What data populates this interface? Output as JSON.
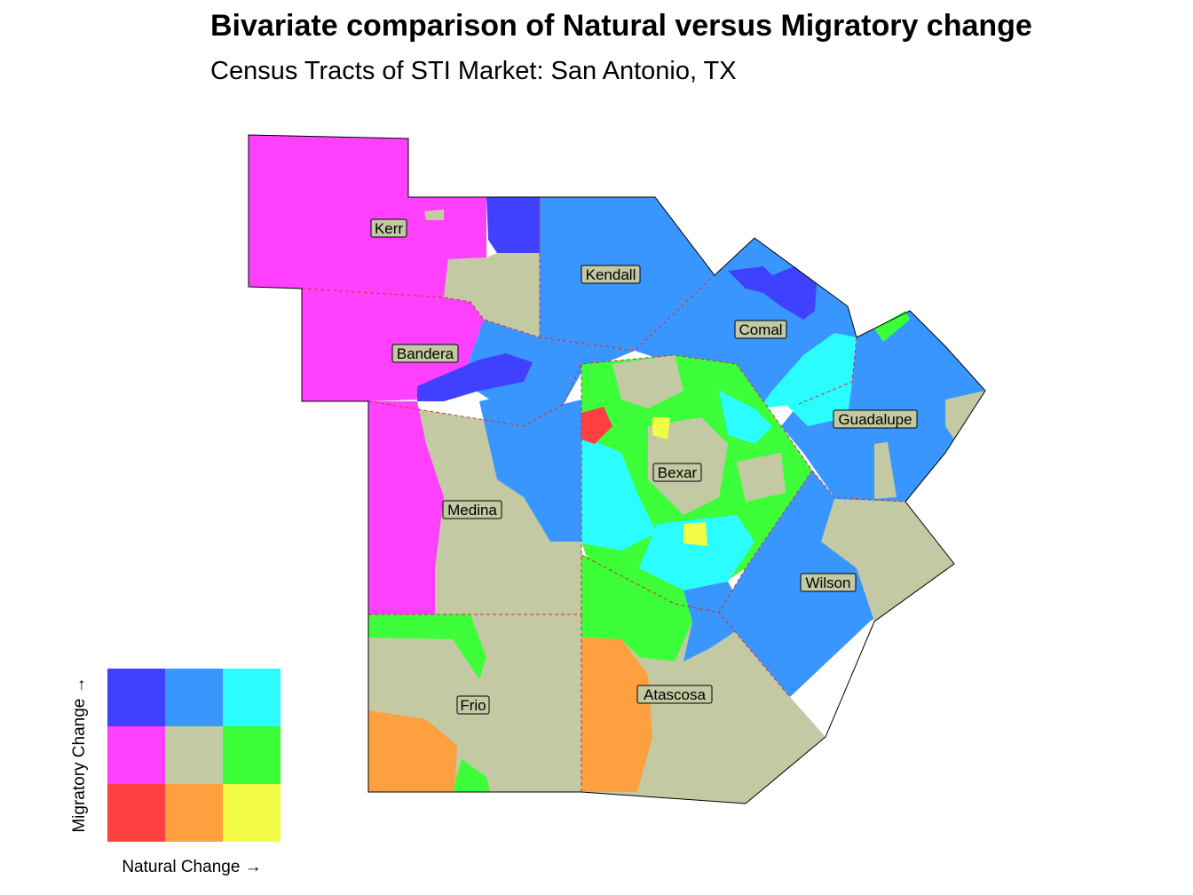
{
  "title": "Bivariate comparison of Natural versus Migratory change",
  "subtitle": "Census Tracts of STI Market: San Antonio, TX",
  "counties": [
    {
      "id": "kerr",
      "label": "Kerr"
    },
    {
      "id": "kendall",
      "label": "Kendall"
    },
    {
      "id": "comal",
      "label": "Comal"
    },
    {
      "id": "bandera",
      "label": "Bandera"
    },
    {
      "id": "guadalupe",
      "label": "Guadalupe"
    },
    {
      "id": "bexar",
      "label": "Bexar"
    },
    {
      "id": "medina",
      "label": "Medina"
    },
    {
      "id": "wilson",
      "label": "Wilson"
    },
    {
      "id": "frio",
      "label": "Frio"
    },
    {
      "id": "atascosa",
      "label": "Atascosa"
    }
  ],
  "legend": {
    "y_label": "Migratory Change →",
    "x_label": "Natural Change →",
    "colors": [
      [
        "#4040ff",
        "#3a96ff",
        "#2bfcff"
      ],
      [
        "#ff40ff",
        "#c3c9a2",
        "#3cff3a"
      ],
      [
        "#ff4040",
        "#ffa040",
        "#f3fc44"
      ]
    ]
  }
}
